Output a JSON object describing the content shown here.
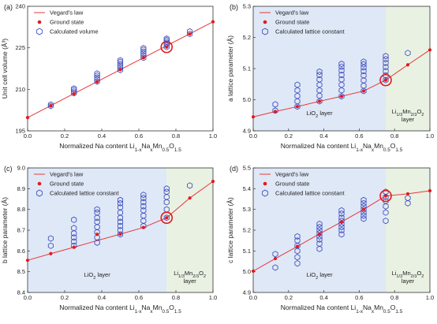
{
  "colors": {
    "line": "#e8373b",
    "point": "#e31a1c",
    "hexagon": "#3344bb",
    "highlight": "#e31a1c",
    "li_region": "#dfe8f6",
    "na_region": "#e9f1e3",
    "axis": "#333333"
  },
  "chart_data": [
    {
      "panel": "(a)",
      "type": "scatter",
      "xlabel": "Normalized Na content Li1-xNaxMn0.5O1.5",
      "ylabel": "Unit cell volume (Å³)",
      "xlim": [
        0,
        1.0
      ],
      "ylim": [
        195,
        240
      ],
      "xticks": [
        "0.0",
        "0.2",
        "0.4",
        "0.6",
        "0.8",
        "1.0"
      ],
      "yticks": [
        "195",
        "210",
        "225",
        "240"
      ],
      "legend": [
        "Vegard's law",
        "Ground state",
        "Calculated volume"
      ],
      "legend_position": "top-left",
      "regions": [],
      "highlight": {
        "x": 0.75,
        "y": 225.3
      },
      "series": [
        {
          "name": "Vegard's law",
          "kind": "line",
          "x": [
            0,
            1
          ],
          "y": [
            199.8,
            234.4
          ]
        },
        {
          "name": "Ground state",
          "kind": "points",
          "x": [
            0,
            0.125,
            0.25,
            0.375,
            0.5,
            0.625,
            0.75,
            0.875,
            1.0
          ],
          "y": [
            199.8,
            204.1,
            208.4,
            212.7,
            217.1,
            221.4,
            225.3,
            230.0,
            234.4
          ]
        },
        {
          "name": "Calculated volume",
          "kind": "hexagons",
          "x": [
            0.125,
            0.125,
            0.25,
            0.25,
            0.25,
            0.25,
            0.375,
            0.375,
            0.375,
            0.375,
            0.375,
            0.5,
            0.5,
            0.5,
            0.5,
            0.5,
            0.5,
            0.625,
            0.625,
            0.625,
            0.625,
            0.625,
            0.625,
            0.75,
            0.75,
            0.75,
            0.75,
            0.75,
            0.75,
            0.875,
            0.875
          ],
          "y": [
            204.0,
            204.5,
            208.6,
            209.2,
            209.8,
            210.3,
            212.8,
            213.6,
            214.3,
            215.0,
            215.7,
            217.0,
            217.8,
            218.5,
            219.2,
            219.9,
            220.5,
            221.4,
            222.2,
            222.9,
            223.6,
            224.3,
            224.9,
            225.3,
            226.0,
            226.6,
            227.2,
            227.8,
            228.3,
            230.0,
            230.9
          ]
        }
      ]
    },
    {
      "panel": "(b)",
      "type": "scatter",
      "xlabel": "Normalized Na content Li1-xNaxMn0.5O1.5",
      "ylabel": "a lattice parameter (Å)",
      "xlim": [
        0,
        1.0
      ],
      "ylim": [
        4.9,
        5.3
      ],
      "xticks": [
        "0.0",
        "0.2",
        "0.4",
        "0.6",
        "0.8",
        "1.0"
      ],
      "yticks": [
        "4.9",
        "5.0",
        "5.1",
        "5.2",
        "5.3"
      ],
      "legend": [
        "Vegard's law",
        "Ground state",
        "Calculated lattice constant"
      ],
      "legend_position": "top-left",
      "regions": [
        {
          "from": 0,
          "to": 0.75,
          "color_key": "li_region",
          "label": "LiO2 layer"
        },
        {
          "from": 0.75,
          "to": 1.0,
          "color_key": "na_region",
          "label": "Li1/3Mn2/3O2 layer"
        }
      ],
      "highlight": {
        "x": 0.75,
        "y": 5.063
      },
      "series": [
        {
          "name": "Vegard's law",
          "kind": "line",
          "x": [
            0,
            0.125,
            0.25,
            0.375,
            0.5,
            0.625,
            0.75,
            0.875,
            1.0
          ],
          "y": [
            4.945,
            4.962,
            4.978,
            4.995,
            5.011,
            5.028,
            5.063,
            5.112,
            5.16
          ]
        },
        {
          "name": "Ground state",
          "kind": "points",
          "x": [
            0,
            0.125,
            0.25,
            0.375,
            0.5,
            0.625,
            0.75,
            0.875,
            1.0
          ],
          "y": [
            4.945,
            4.962,
            4.978,
            4.995,
            5.011,
            5.028,
            5.063,
            5.112,
            5.16
          ]
        },
        {
          "name": "Calculated lattice constant",
          "kind": "hexagons",
          "x": [
            0.125,
            0.125,
            0.25,
            0.25,
            0.25,
            0.25,
            0.25,
            0.375,
            0.375,
            0.375,
            0.375,
            0.375,
            0.375,
            0.375,
            0.5,
            0.5,
            0.5,
            0.5,
            0.5,
            0.5,
            0.5,
            0.5,
            0.625,
            0.625,
            0.625,
            0.625,
            0.625,
            0.625,
            0.625,
            0.625,
            0.75,
            0.75,
            0.75,
            0.75,
            0.75,
            0.75,
            0.75,
            0.875
          ],
          "y": [
            4.965,
            4.985,
            4.978,
            4.995,
            5.012,
            5.03,
            5.048,
            4.995,
            5.013,
            5.03,
            5.048,
            5.065,
            5.08,
            5.09,
            5.011,
            5.03,
            5.048,
            5.065,
            5.08,
            5.094,
            5.106,
            5.115,
            5.028,
            5.045,
            5.062,
            5.078,
            5.092,
            5.104,
            5.114,
            5.122,
            5.063,
            5.078,
            5.092,
            5.105,
            5.118,
            5.13,
            5.14,
            5.15
          ]
        }
      ]
    },
    {
      "panel": "(c)",
      "type": "scatter",
      "xlabel": "Normalized Na content Li1-xNaxMn0.5O1.5",
      "ylabel": "b lattice parameter (Å)",
      "xlim": [
        0,
        1.0
      ],
      "ylim": [
        8.4,
        9.0
      ],
      "xticks": [
        "0.0",
        "0.2",
        "0.4",
        "0.6",
        "0.8",
        "1.0"
      ],
      "yticks": [
        "8.4",
        "8.5",
        "8.6",
        "8.7",
        "8.8",
        "8.9",
        "9.0"
      ],
      "legend": [
        "Vegard's law",
        "Ground state",
        "Calculated lattice constant"
      ],
      "legend_position": "top-left",
      "regions": [
        {
          "from": 0,
          "to": 0.75,
          "color_key": "li_region",
          "label": "LiO2 layer"
        },
        {
          "from": 0.75,
          "to": 1.0,
          "color_key": "na_region",
          "label": "Li1/3Mn2/3O2 layer"
        }
      ],
      "highlight": {
        "x": 0.75,
        "y": 8.76
      },
      "series": [
        {
          "name": "Vegard's law",
          "kind": "line",
          "x": [
            0,
            0.125,
            0.25,
            0.375,
            0.5,
            0.625,
            0.75,
            0.875,
            1.0
          ],
          "y": [
            8.555,
            8.587,
            8.618,
            8.65,
            8.681,
            8.713,
            8.76,
            8.855,
            8.935
          ]
        },
        {
          "name": "Ground state",
          "kind": "points",
          "x": [
            0,
            0.125,
            0.25,
            0.375,
            0.5,
            0.625,
            0.75,
            0.875,
            1.0
          ],
          "y": [
            8.555,
            8.587,
            8.618,
            8.68,
            8.681,
            8.713,
            8.76,
            8.855,
            8.935
          ]
        },
        {
          "name": "Calculated lattice constant",
          "kind": "hexagons",
          "x": [
            0.125,
            0.125,
            0.25,
            0.25,
            0.25,
            0.25,
            0.25,
            0.25,
            0.375,
            0.375,
            0.375,
            0.375,
            0.375,
            0.375,
            0.375,
            0.375,
            0.5,
            0.5,
            0.5,
            0.5,
            0.5,
            0.5,
            0.5,
            0.5,
            0.5,
            0.625,
            0.625,
            0.625,
            0.625,
            0.625,
            0.625,
            0.625,
            0.625,
            0.75,
            0.75,
            0.75,
            0.75,
            0.75,
            0.75,
            0.875
          ],
          "y": [
            8.625,
            8.66,
            8.625,
            8.645,
            8.665,
            8.685,
            8.71,
            8.75,
            8.64,
            8.665,
            8.69,
            8.715,
            8.74,
            8.76,
            8.785,
            8.8,
            8.68,
            8.7,
            8.72,
            8.74,
            8.76,
            8.785,
            8.81,
            8.83,
            8.845,
            8.72,
            8.745,
            8.77,
            8.795,
            8.815,
            8.835,
            8.855,
            8.87,
            8.76,
            8.8,
            8.835,
            8.86,
            8.885,
            8.9,
            8.915
          ]
        }
      ]
    },
    {
      "panel": "(d)",
      "type": "scatter",
      "xlabel": "Normalized Na content Li1-xNaxMn0.5O1.5",
      "ylabel": "c lattice parameter (Å)",
      "xlim": [
        0,
        1.0
      ],
      "ylim": [
        4.9,
        5.5
      ],
      "xticks": [
        "0.0",
        "0.2",
        "0.4",
        "0.6",
        "0.8",
        "1.0"
      ],
      "yticks": [
        "4.9",
        "5.0",
        "5.1",
        "5.2",
        "5.3",
        "5.4",
        "5.5"
      ],
      "legend": [
        "Vegard's law",
        "Ground state",
        "Calculated lattice constant"
      ],
      "legend_position": "top-left",
      "regions": [
        {
          "from": 0,
          "to": 0.75,
          "color_key": "li_region",
          "label": "LiO2 layer"
        },
        {
          "from": 0.75,
          "to": 1.0,
          "color_key": "na_region",
          "label": "Li1/3Mn2/3O2 layer"
        }
      ],
      "highlight": {
        "x": 0.75,
        "y": 5.365
      },
      "series": [
        {
          "name": "Vegard's law",
          "kind": "line",
          "x": [
            0,
            0.125,
            0.25,
            0.375,
            0.5,
            0.625,
            0.75,
            0.875,
            1.0
          ],
          "y": [
            5.003,
            5.063,
            5.122,
            5.182,
            5.24,
            5.3,
            5.365,
            5.375,
            5.39
          ]
        },
        {
          "name": "Ground state",
          "kind": "points",
          "x": [
            0,
            0.125,
            0.25,
            0.375,
            0.5,
            0.625,
            0.75,
            0.875,
            1.0
          ],
          "y": [
            5.003,
            5.063,
            5.122,
            5.182,
            5.24,
            5.3,
            5.365,
            5.375,
            5.39
          ]
        },
        {
          "name": "Calculated lattice constant",
          "kind": "hexagons",
          "x": [
            0.125,
            0.125,
            0.25,
            0.25,
            0.25,
            0.25,
            0.25,
            0.25,
            0.375,
            0.375,
            0.375,
            0.375,
            0.375,
            0.375,
            0.375,
            0.375,
            0.5,
            0.5,
            0.5,
            0.5,
            0.5,
            0.5,
            0.5,
            0.5,
            0.625,
            0.625,
            0.625,
            0.625,
            0.625,
            0.625,
            0.625,
            0.75,
            0.75,
            0.75,
            0.75,
            0.75,
            0.75,
            0.875,
            0.875
          ],
          "y": [
            5.02,
            5.085,
            5.04,
            5.07,
            5.1,
            5.125,
            5.15,
            5.17,
            5.11,
            5.135,
            5.155,
            5.17,
            5.185,
            5.2,
            5.215,
            5.23,
            5.18,
            5.2,
            5.215,
            5.23,
            5.245,
            5.26,
            5.28,
            5.295,
            5.255,
            5.27,
            5.285,
            5.3,
            5.315,
            5.33,
            5.345,
            5.245,
            5.285,
            5.315,
            5.34,
            5.36,
            5.385,
            5.33,
            5.355
          ]
        }
      ]
    }
  ]
}
